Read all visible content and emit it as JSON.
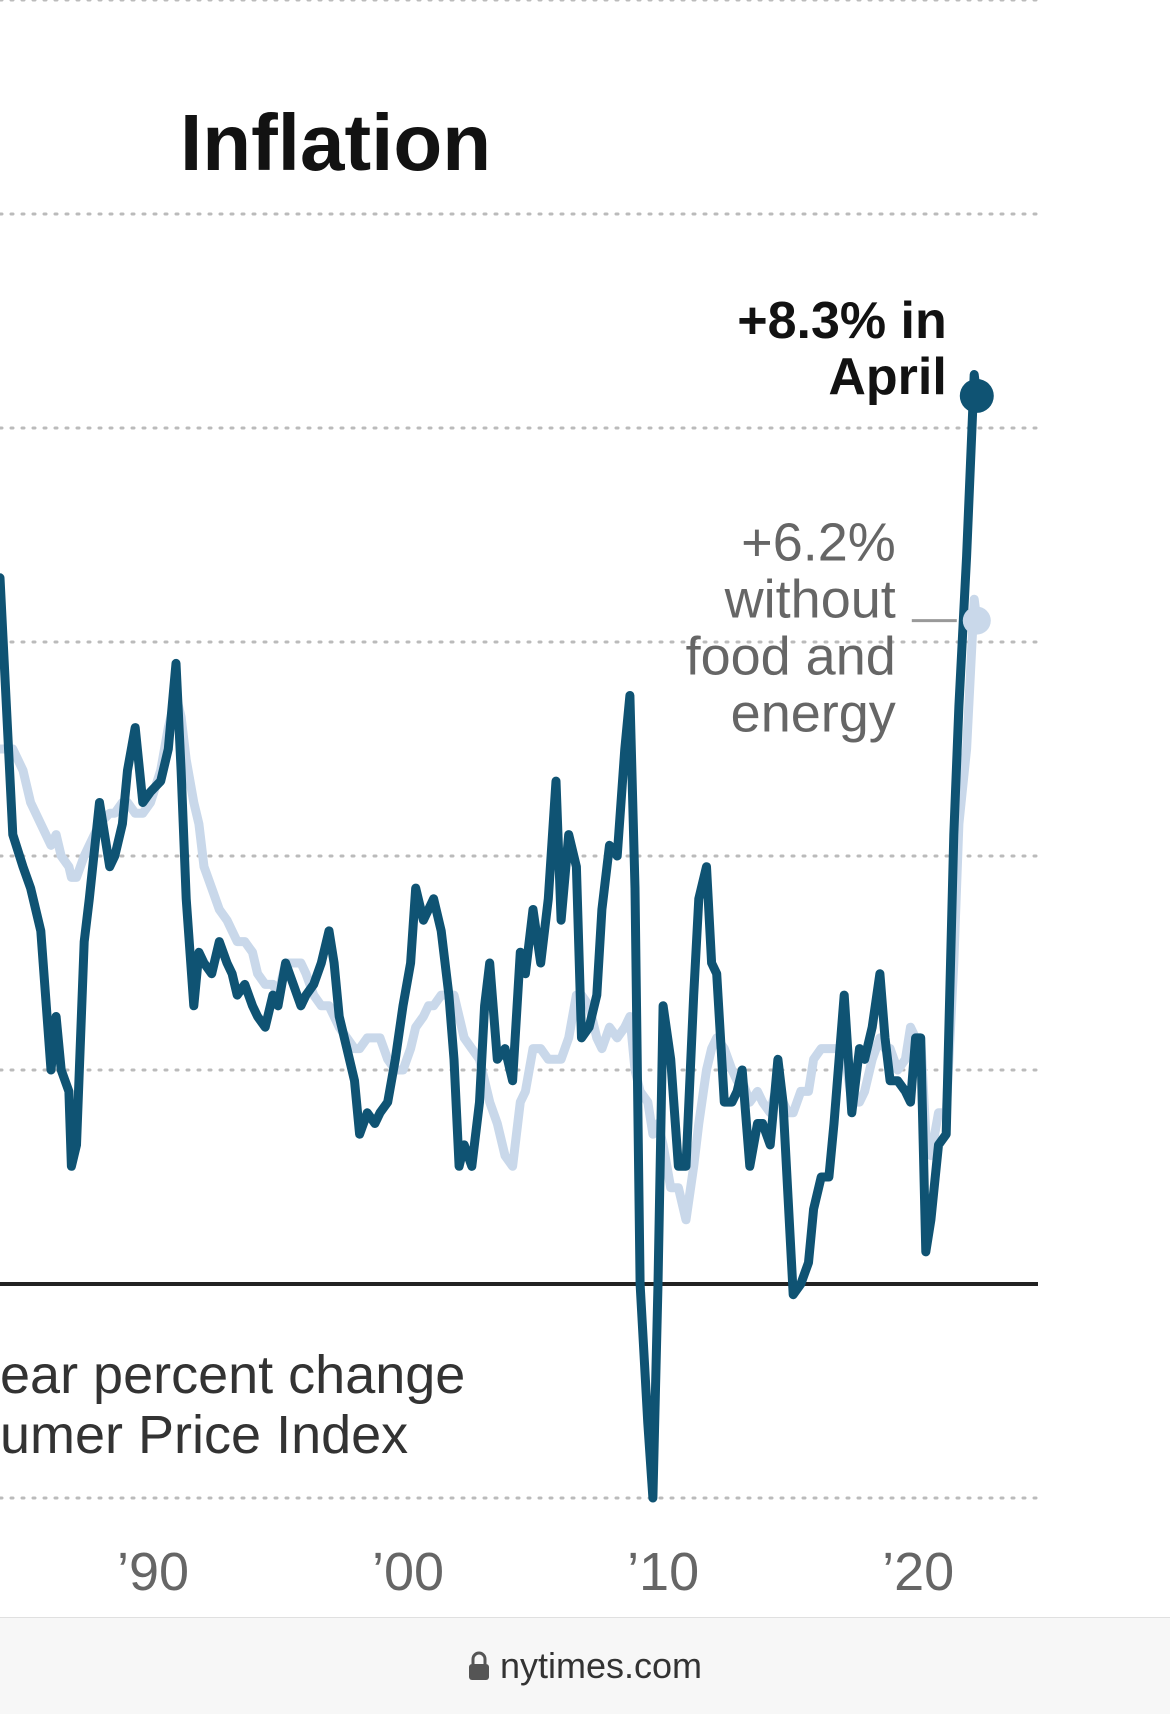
{
  "footer": {
    "url": "nytimes.com",
    "lock_icon": "lock-icon"
  },
  "chart_data": {
    "type": "line",
    "title": "Inflation",
    "note_lines": [
      "ear percent change",
      "umer Price Index"
    ],
    "xlim": [
      1984.0,
      2024.7
    ],
    "ylim": [
      -2,
      12
    ],
    "gridlines_y": [
      -2,
      2,
      4,
      6,
      8,
      10,
      12
    ],
    "baseline_y": 0,
    "grid": "dotted",
    "x_ticks": [
      {
        "value": 1990,
        "label": "’90"
      },
      {
        "value": 2000,
        "label": "’00"
      },
      {
        "value": 2010,
        "label": "’10"
      },
      {
        "value": 2020,
        "label": "’20"
      }
    ],
    "colors": {
      "all_items": "#0f5373",
      "core": "#c9d8ea",
      "baseline": "#222222",
      "grid": "#bbbbbb",
      "connector": "#999999"
    },
    "annotations": [
      {
        "series": "all_items",
        "lines": [
          "+8.3% in",
          "April"
        ]
      },
      {
        "series": "core",
        "lines": [
          "+6.2%",
          "without",
          "food and",
          "energy"
        ]
      }
    ],
    "series": [
      {
        "id": "all_items",
        "points": [
          [
            1984.0,
            6.6
          ],
          [
            1984.5,
            4.2
          ],
          [
            1984.9,
            3.9
          ],
          [
            1985.2,
            3.7
          ],
          [
            1985.6,
            3.3
          ],
          [
            1986.0,
            2.0
          ],
          [
            1986.2,
            2.5
          ],
          [
            1986.4,
            2.0
          ],
          [
            1986.7,
            1.8
          ],
          [
            1986.8,
            1.1
          ],
          [
            1987.0,
            1.3
          ],
          [
            1987.3,
            3.2
          ],
          [
            1987.5,
            3.6
          ],
          [
            1987.9,
            4.5
          ],
          [
            1988.3,
            3.9
          ],
          [
            1988.5,
            4.0
          ],
          [
            1988.8,
            4.3
          ],
          [
            1989.0,
            4.8
          ],
          [
            1989.3,
            5.2
          ],
          [
            1989.6,
            4.5
          ],
          [
            1989.9,
            4.6
          ],
          [
            1990.3,
            4.7
          ],
          [
            1990.6,
            5.0
          ],
          [
            1990.9,
            5.8
          ],
          [
            1991.1,
            4.8
          ],
          [
            1991.3,
            3.6
          ],
          [
            1991.6,
            2.6
          ],
          [
            1991.8,
            3.1
          ],
          [
            1992.0,
            3.0
          ],
          [
            1992.3,
            2.9
          ],
          [
            1992.6,
            3.2
          ],
          [
            1992.9,
            3.0
          ],
          [
            1993.1,
            2.9
          ],
          [
            1993.3,
            2.7
          ],
          [
            1993.6,
            2.8
          ],
          [
            1993.9,
            2.6
          ],
          [
            1994.1,
            2.5
          ],
          [
            1994.4,
            2.4
          ],
          [
            1994.7,
            2.7
          ],
          [
            1994.9,
            2.6
          ],
          [
            1995.2,
            3.0
          ],
          [
            1995.5,
            2.8
          ],
          [
            1995.8,
            2.6
          ],
          [
            1996.0,
            2.7
          ],
          [
            1996.3,
            2.8
          ],
          [
            1996.6,
            3.0
          ],
          [
            1996.9,
            3.3
          ],
          [
            1997.1,
            3.0
          ],
          [
            1997.3,
            2.5
          ],
          [
            1997.6,
            2.2
          ],
          [
            1997.9,
            1.9
          ],
          [
            1998.1,
            1.4
          ],
          [
            1998.4,
            1.6
          ],
          [
            1998.7,
            1.5
          ],
          [
            1998.9,
            1.6
          ],
          [
            1999.2,
            1.7
          ],
          [
            1999.5,
            2.1
          ],
          [
            1999.8,
            2.6
          ],
          [
            2000.1,
            3.0
          ],
          [
            2000.3,
            3.7
          ],
          [
            2000.6,
            3.4
          ],
          [
            2000.8,
            3.5
          ],
          [
            2001.0,
            3.6
          ],
          [
            2001.3,
            3.3
          ],
          [
            2001.6,
            2.7
          ],
          [
            2001.8,
            2.1
          ],
          [
            2002.0,
            1.1
          ],
          [
            2002.2,
            1.3
          ],
          [
            2002.5,
            1.1
          ],
          [
            2002.8,
            1.7
          ],
          [
            2003.0,
            2.6
          ],
          [
            2003.2,
            3.0
          ],
          [
            2003.5,
            2.1
          ],
          [
            2003.8,
            2.2
          ],
          [
            2004.1,
            1.9
          ],
          [
            2004.4,
            3.1
          ],
          [
            2004.6,
            2.9
          ],
          [
            2004.9,
            3.5
          ],
          [
            2005.2,
            3.0
          ],
          [
            2005.5,
            3.6
          ],
          [
            2005.8,
            4.7
          ],
          [
            2006.0,
            3.4
          ],
          [
            2006.3,
            4.2
          ],
          [
            2006.6,
            3.9
          ],
          [
            2006.8,
            2.3
          ],
          [
            2007.1,
            2.4
          ],
          [
            2007.4,
            2.7
          ],
          [
            2007.6,
            3.5
          ],
          [
            2007.9,
            4.1
          ],
          [
            2008.2,
            4.0
          ],
          [
            2008.5,
            5.0
          ],
          [
            2008.7,
            5.5
          ],
          [
            2008.9,
            3.7
          ],
          [
            2009.1,
            0.0
          ],
          [
            2009.4,
            -1.3
          ],
          [
            2009.6,
            -2.0
          ],
          [
            2009.8,
            0.0
          ],
          [
            2010.0,
            2.6
          ],
          [
            2010.3,
            2.1
          ],
          [
            2010.6,
            1.1
          ],
          [
            2010.9,
            1.1
          ],
          [
            2011.2,
            2.7
          ],
          [
            2011.4,
            3.6
          ],
          [
            2011.7,
            3.9
          ],
          [
            2011.9,
            3.0
          ],
          [
            2012.1,
            2.9
          ],
          [
            2012.4,
            1.7
          ],
          [
            2012.7,
            1.7
          ],
          [
            2012.9,
            1.8
          ],
          [
            2013.1,
            2.0
          ],
          [
            2013.4,
            1.1
          ],
          [
            2013.7,
            1.5
          ],
          [
            2013.9,
            1.5
          ],
          [
            2014.2,
            1.3
          ],
          [
            2014.5,
            2.1
          ],
          [
            2014.7,
            1.7
          ],
          [
            2014.9,
            0.8
          ],
          [
            2015.1,
            -0.1
          ],
          [
            2015.4,
            0.0
          ],
          [
            2015.7,
            0.2
          ],
          [
            2015.9,
            0.7
          ],
          [
            2016.2,
            1.0
          ],
          [
            2016.5,
            1.0
          ],
          [
            2016.7,
            1.5
          ],
          [
            2016.9,
            2.1
          ],
          [
            2017.1,
            2.7
          ],
          [
            2017.4,
            1.6
          ],
          [
            2017.7,
            2.2
          ],
          [
            2017.9,
            2.1
          ],
          [
            2018.2,
            2.4
          ],
          [
            2018.5,
            2.9
          ],
          [
            2018.7,
            2.3
          ],
          [
            2018.9,
            1.9
          ],
          [
            2019.2,
            1.9
          ],
          [
            2019.5,
            1.8
          ],
          [
            2019.7,
            1.7
          ],
          [
            2019.9,
            2.3
          ],
          [
            2020.1,
            2.3
          ],
          [
            2020.3,
            0.3
          ],
          [
            2020.5,
            0.6
          ],
          [
            2020.8,
            1.3
          ],
          [
            2021.1,
            1.4
          ],
          [
            2021.4,
            4.2
          ],
          [
            2021.6,
            5.4
          ],
          [
            2021.9,
            6.8
          ],
          [
            2022.2,
            8.5
          ],
          [
            2022.3,
            8.3
          ]
        ]
      },
      {
        "id": "core",
        "points": [
          [
            1984.0,
            5.0
          ],
          [
            1984.5,
            5.0
          ],
          [
            1984.9,
            4.8
          ],
          [
            1985.2,
            4.5
          ],
          [
            1985.6,
            4.3
          ],
          [
            1986.0,
            4.1
          ],
          [
            1986.2,
            4.2
          ],
          [
            1986.4,
            4.0
          ],
          [
            1986.7,
            3.9
          ],
          [
            1986.8,
            3.8
          ],
          [
            1987.0,
            3.8
          ],
          [
            1987.3,
            4.0
          ],
          [
            1987.5,
            4.1
          ],
          [
            1987.9,
            4.3
          ],
          [
            1988.3,
            4.4
          ],
          [
            1988.5,
            4.4
          ],
          [
            1988.8,
            4.5
          ],
          [
            1989.0,
            4.5
          ],
          [
            1989.3,
            4.4
          ],
          [
            1989.6,
            4.4
          ],
          [
            1989.9,
            4.5
          ],
          [
            1990.3,
            4.8
          ],
          [
            1990.6,
            5.2
          ],
          [
            1990.9,
            5.5
          ],
          [
            1991.1,
            5.3
          ],
          [
            1991.3,
            4.9
          ],
          [
            1991.6,
            4.5
          ],
          [
            1991.8,
            4.3
          ],
          [
            1992.0,
            3.9
          ],
          [
            1992.3,
            3.7
          ],
          [
            1992.6,
            3.5
          ],
          [
            1992.9,
            3.4
          ],
          [
            1993.1,
            3.3
          ],
          [
            1993.3,
            3.2
          ],
          [
            1993.6,
            3.2
          ],
          [
            1993.9,
            3.1
          ],
          [
            1994.1,
            2.9
          ],
          [
            1994.4,
            2.8
          ],
          [
            1994.7,
            2.8
          ],
          [
            1994.9,
            2.7
          ],
          [
            1995.2,
            3.0
          ],
          [
            1995.5,
            3.0
          ],
          [
            1995.8,
            3.0
          ],
          [
            1996.0,
            2.9
          ],
          [
            1996.3,
            2.7
          ],
          [
            1996.6,
            2.6
          ],
          [
            1996.9,
            2.6
          ],
          [
            1997.1,
            2.5
          ],
          [
            1997.3,
            2.4
          ],
          [
            1997.6,
            2.3
          ],
          [
            1997.9,
            2.2
          ],
          [
            1998.1,
            2.2
          ],
          [
            1998.4,
            2.3
          ],
          [
            1998.7,
            2.3
          ],
          [
            1998.9,
            2.3
          ],
          [
            1999.2,
            2.1
          ],
          [
            1999.5,
            2.0
          ],
          [
            1999.8,
            2.0
          ],
          [
            2000.1,
            2.2
          ],
          [
            2000.3,
            2.4
          ],
          [
            2000.6,
            2.5
          ],
          [
            2000.8,
            2.6
          ],
          [
            2001.0,
            2.6
          ],
          [
            2001.3,
            2.7
          ],
          [
            2001.6,
            2.7
          ],
          [
            2001.8,
            2.7
          ],
          [
            2002.0,
            2.5
          ],
          [
            2002.2,
            2.3
          ],
          [
            2002.5,
            2.2
          ],
          [
            2002.8,
            2.1
          ],
          [
            2003.0,
            1.9
          ],
          [
            2003.2,
            1.7
          ],
          [
            2003.5,
            1.5
          ],
          [
            2003.8,
            1.2
          ],
          [
            2004.1,
            1.1
          ],
          [
            2004.4,
            1.7
          ],
          [
            2004.6,
            1.8
          ],
          [
            2004.9,
            2.2
          ],
          [
            2005.2,
            2.2
          ],
          [
            2005.5,
            2.1
          ],
          [
            2005.8,
            2.1
          ],
          [
            2006.0,
            2.1
          ],
          [
            2006.3,
            2.3
          ],
          [
            2006.6,
            2.7
          ],
          [
            2006.8,
            2.7
          ],
          [
            2007.1,
            2.6
          ],
          [
            2007.4,
            2.3
          ],
          [
            2007.6,
            2.2
          ],
          [
            2007.9,
            2.4
          ],
          [
            2008.2,
            2.3
          ],
          [
            2008.5,
            2.4
          ],
          [
            2008.7,
            2.5
          ],
          [
            2008.9,
            2.0
          ],
          [
            2009.1,
            1.8
          ],
          [
            2009.4,
            1.7
          ],
          [
            2009.6,
            1.4
          ],
          [
            2009.8,
            1.5
          ],
          [
            2010.0,
            1.3
          ],
          [
            2010.3,
            0.9
          ],
          [
            2010.6,
            0.9
          ],
          [
            2010.9,
            0.6
          ],
          [
            2011.2,
            1.1
          ],
          [
            2011.4,
            1.5
          ],
          [
            2011.7,
            2.0
          ],
          [
            2011.9,
            2.2
          ],
          [
            2012.1,
            2.3
          ],
          [
            2012.4,
            2.2
          ],
          [
            2012.7,
            2.0
          ],
          [
            2012.9,
            1.9
          ],
          [
            2013.1,
            1.9
          ],
          [
            2013.4,
            1.7
          ],
          [
            2013.7,
            1.8
          ],
          [
            2013.9,
            1.7
          ],
          [
            2014.2,
            1.6
          ],
          [
            2014.5,
            1.9
          ],
          [
            2014.7,
            1.7
          ],
          [
            2014.9,
            1.6
          ],
          [
            2015.1,
            1.6
          ],
          [
            2015.4,
            1.8
          ],
          [
            2015.7,
            1.8
          ],
          [
            2015.9,
            2.1
          ],
          [
            2016.2,
            2.2
          ],
          [
            2016.5,
            2.2
          ],
          [
            2016.7,
            2.2
          ],
          [
            2016.9,
            2.2
          ],
          [
            2017.1,
            2.2
          ],
          [
            2017.4,
            1.7
          ],
          [
            2017.7,
            1.7
          ],
          [
            2017.9,
            1.8
          ],
          [
            2018.2,
            2.1
          ],
          [
            2018.5,
            2.3
          ],
          [
            2018.7,
            2.2
          ],
          [
            2018.9,
            2.2
          ],
          [
            2019.2,
            2.0
          ],
          [
            2019.5,
            2.1
          ],
          [
            2019.7,
            2.4
          ],
          [
            2019.9,
            2.3
          ],
          [
            2020.1,
            2.3
          ],
          [
            2020.3,
            1.4
          ],
          [
            2020.5,
            1.2
          ],
          [
            2020.8,
            1.6
          ],
          [
            2021.1,
            1.6
          ],
          [
            2021.4,
            3.0
          ],
          [
            2021.6,
            4.3
          ],
          [
            2021.9,
            5.0
          ],
          [
            2022.2,
            6.4
          ],
          [
            2022.3,
            6.2
          ]
        ]
      }
    ]
  }
}
